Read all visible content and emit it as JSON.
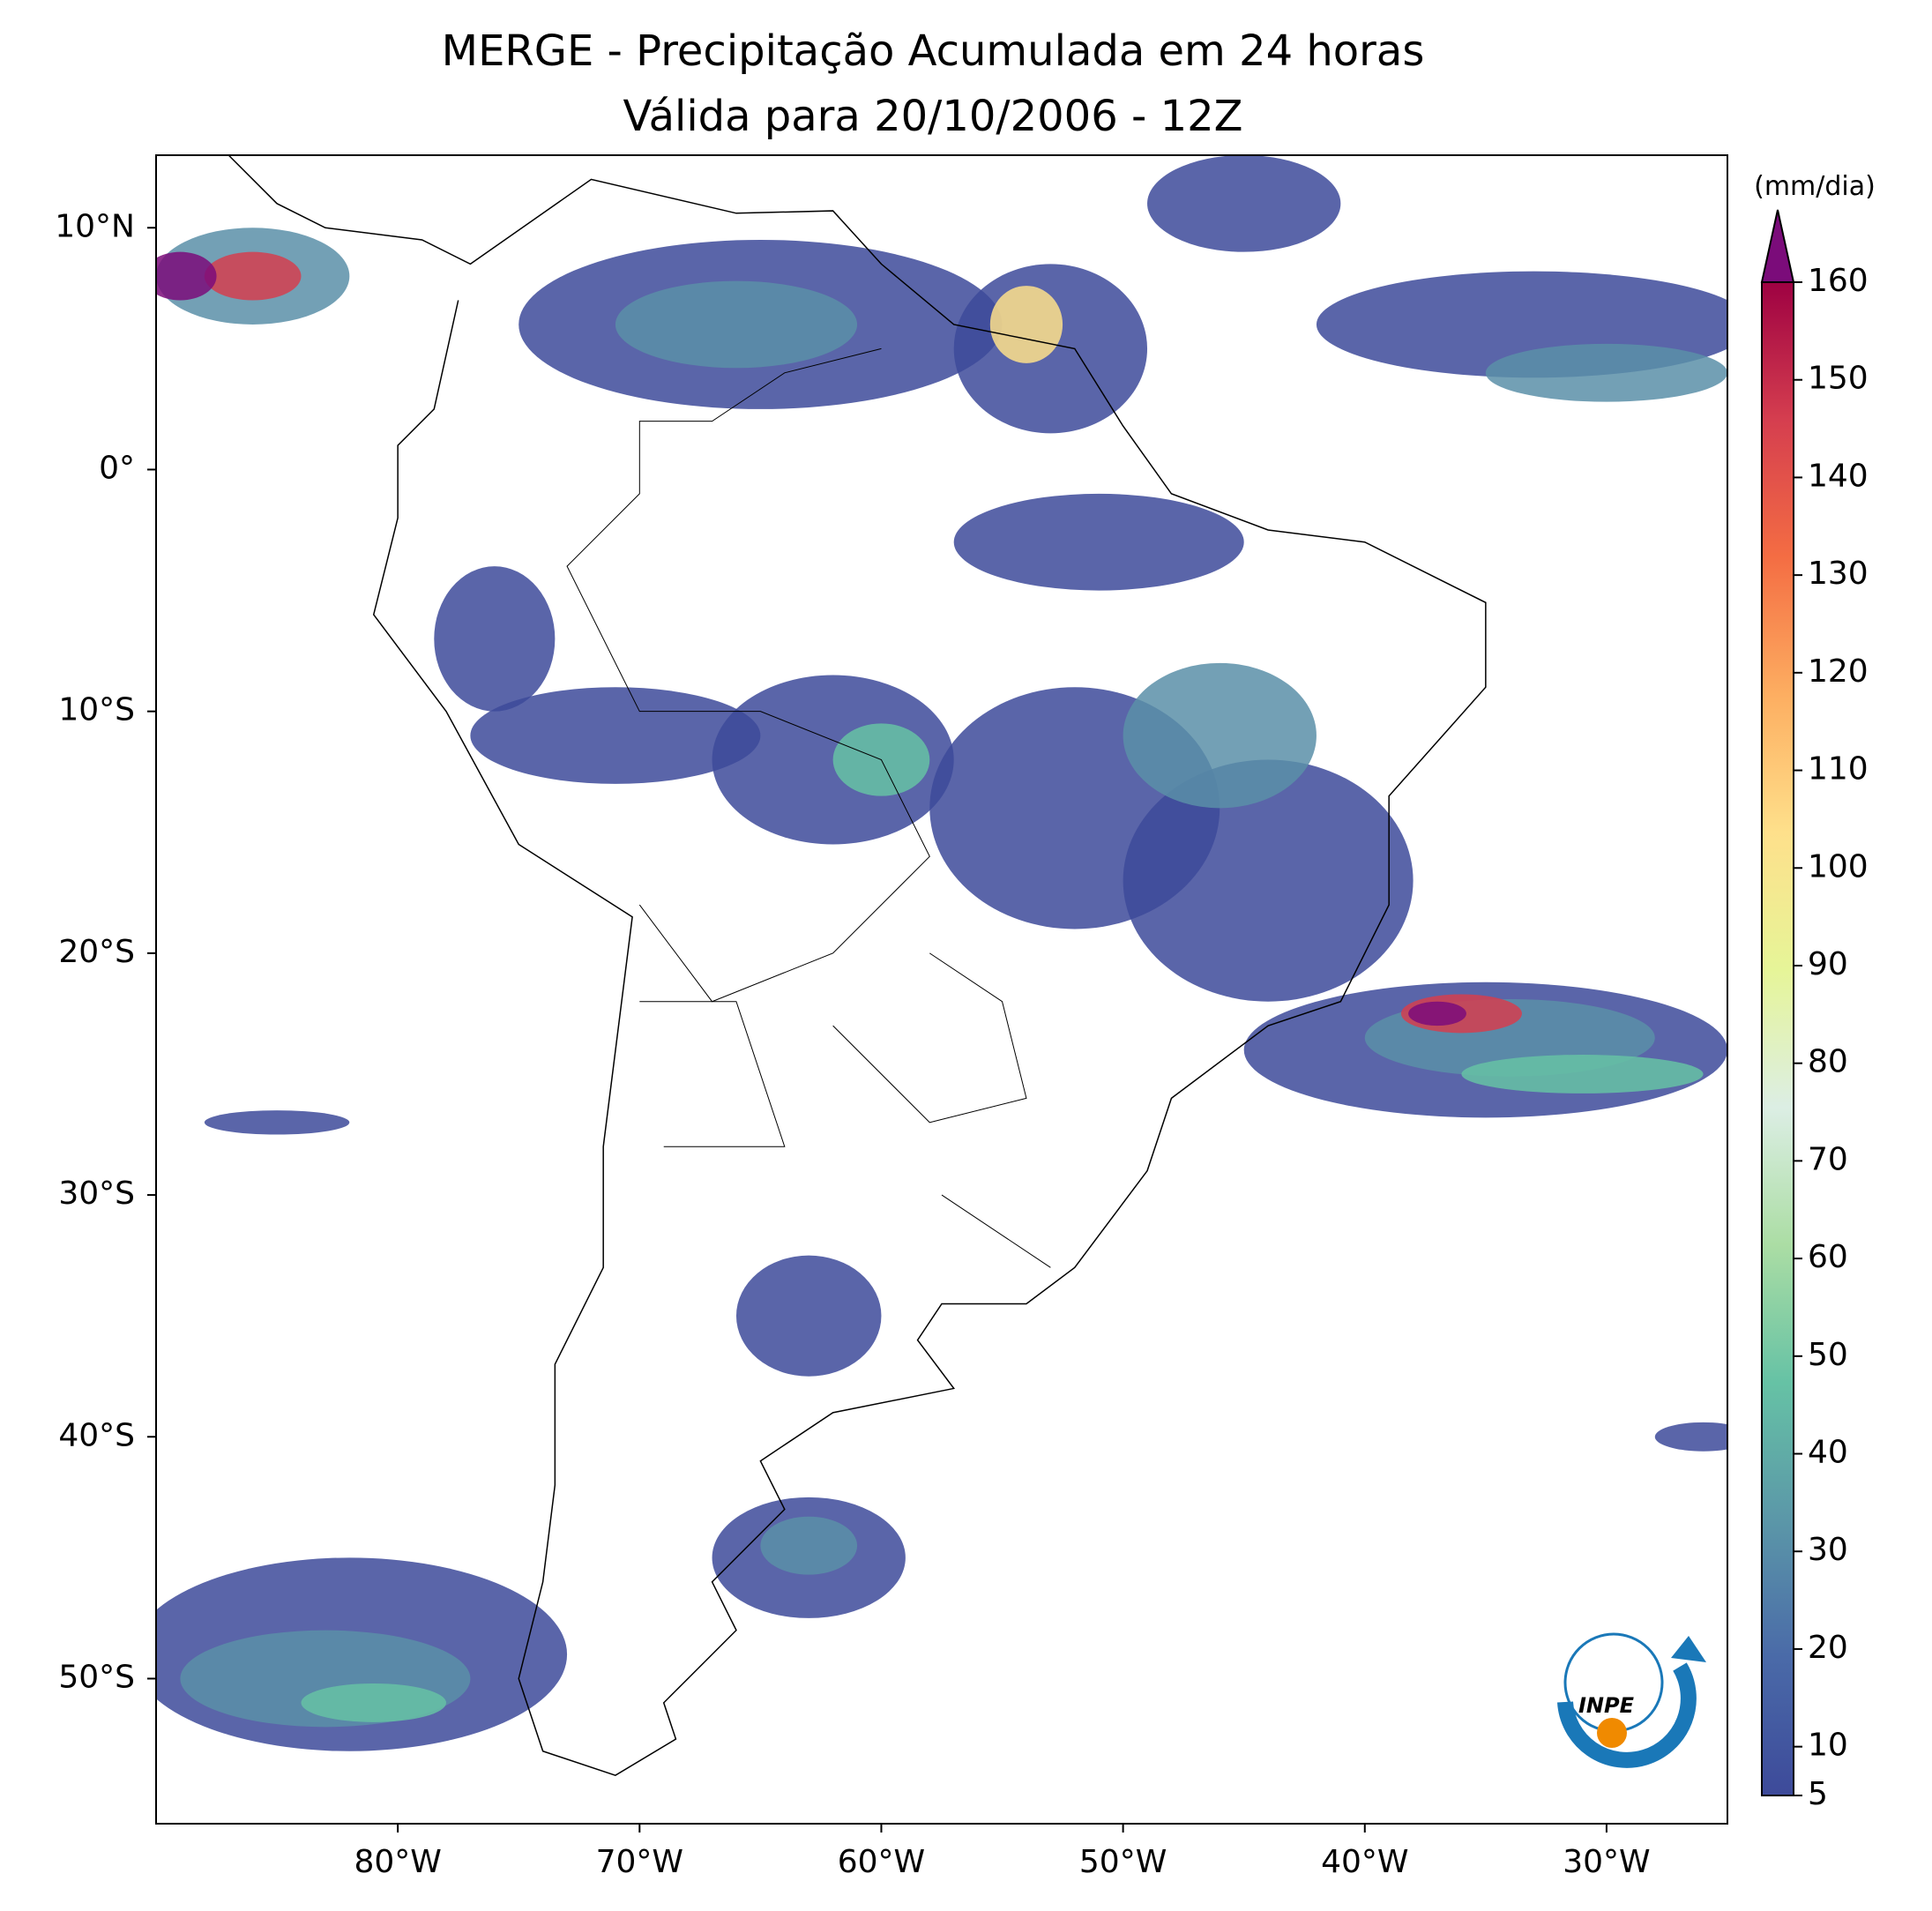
{
  "chart_data": {
    "type": "map",
    "title": "MERGE - Precipitação Acumulada em 24 horas",
    "subtitle": "Válida para 20/10/2006 - 12Z",
    "xlim": [
      -90,
      -25
    ],
    "ylim": [
      -56,
      13
    ],
    "xticks": [
      {
        "value": -80,
        "label": "80°W"
      },
      {
        "value": -70,
        "label": "70°W"
      },
      {
        "value": -60,
        "label": "60°W"
      },
      {
        "value": -50,
        "label": "50°W"
      },
      {
        "value": -40,
        "label": "40°W"
      },
      {
        "value": -30,
        "label": "30°W"
      }
    ],
    "yticks": [
      {
        "value": 10,
        "label": "10°N"
      },
      {
        "value": 0,
        "label": "0°"
      },
      {
        "value": -10,
        "label": "10°S"
      },
      {
        "value": -20,
        "label": "20°S"
      },
      {
        "value": -30,
        "label": "30°S"
      },
      {
        "value": -40,
        "label": "40°S"
      },
      {
        "value": -50,
        "label": "50°S"
      }
    ],
    "colorbar": {
      "label": "(mm/dia)",
      "clim": [
        5,
        160
      ],
      "ticks": [
        5,
        10,
        20,
        30,
        40,
        50,
        60,
        70,
        80,
        90,
        100,
        110,
        120,
        130,
        140,
        150,
        160
      ],
      "colors": [
        "#3d4a9a",
        "#4a6aa8",
        "#5b97a8",
        "#66c2a5",
        "#abdda4",
        "#dceee4",
        "#e6f598",
        "#fee08b",
        "#fdae61",
        "#f46d43",
        "#d53e4f",
        "#9e0142"
      ],
      "over_color": "#7b0c7a"
    },
    "logo_text": "INPE"
  }
}
